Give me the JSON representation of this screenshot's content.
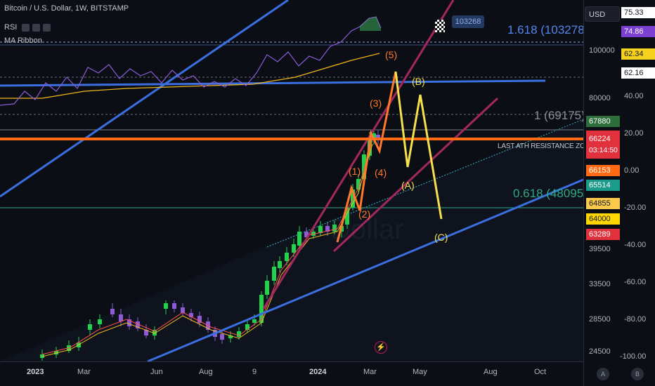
{
  "header": {
    "symbol": "Bitcoin / U.S. Dollar, 1W, BITSTAMP",
    "indicator1": "RSI",
    "indicator2": "MA Ribbon"
  },
  "currency": "USD",
  "flag_price": "103268",
  "colors": {
    "up": "#20d34a",
    "down": "#8e5ad8",
    "blue_line": "#3b6fe0",
    "magenta_line": "#a3285c",
    "orange_line": "#ff6a13",
    "wave_yellow": "#f6e04b",
    "wave_orange": "#ff7a2a",
    "fib_green": "#2fa982",
    "rsi": "#8a5cd6",
    "ma": "#f0b81c"
  },
  "annotations": {
    "fib_1618": "1.618 (103278)",
    "fib_1": "1 (69175)",
    "fib_0618": "0.618 (48095)",
    "resistance": "LAST ATH RESISTANCE ZONES",
    "watermark": "Dollar"
  },
  "waves": {
    "w1": "(1)",
    "w2": "(2)",
    "w3": "(3)",
    "w4": "(4)",
    "w5": "(5)",
    "wA": "(A)",
    "wB": "(B)",
    "wC": "(C)"
  },
  "price_axis": {
    "ticks": [
      "100000",
      "80000",
      "39500",
      "33500",
      "28500",
      "24500"
    ]
  },
  "rsi_axis": {
    "ticks": [
      "40.00",
      "20.00",
      "0.00",
      "-20.00",
      "-40.00",
      "-60.00",
      "-80.00",
      "-100.00"
    ]
  },
  "rsi_badges": [
    "75.33",
    "74.86",
    "62.34",
    "62.16"
  ],
  "price_badges": {
    "b67880": "67880",
    "current": "66224",
    "countdown": "03:14:50",
    "b66153": "66153",
    "b65514": "65514",
    "b64855": "64855",
    "b64000": "64000",
    "b63289": "63289"
  },
  "time_axis": {
    "labels": [
      "2023",
      "Mar",
      "Jun",
      "Aug",
      "9",
      "2024",
      "Mar",
      "May",
      "Aug",
      "Oct"
    ]
  },
  "axis_buttons": {
    "a": "A",
    "b": "B"
  },
  "chart_data": {
    "type": "candlestick",
    "title": "Bitcoin / U.S. Dollar, 1W, BITSTAMP",
    "xlabel": "",
    "ylabel": "",
    "price_axis_ticks": [
      100000,
      80000,
      39500,
      33500,
      28500,
      24500
    ],
    "fibonacci": [
      {
        "label": "1.618",
        "value": 103278
      },
      {
        "label": "1",
        "value": 69175
      },
      {
        "label": "0.618",
        "value": 48095
      }
    ],
    "elliott_wave_projection": [
      "(1)",
      "(2)",
      "(3)",
      "(4)",
      "(5)",
      "(A)",
      "(B)",
      "(C)"
    ],
    "current_price": 66224
  }
}
